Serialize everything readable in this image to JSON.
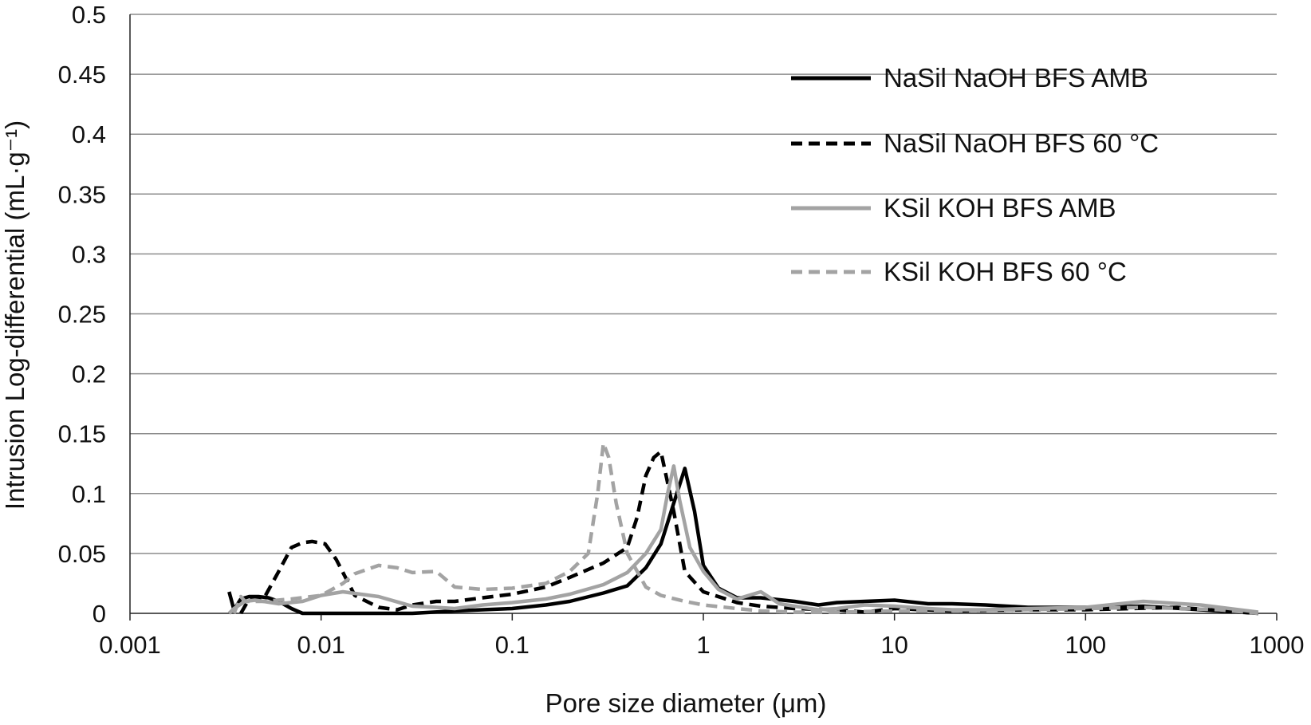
{
  "chart_data": {
    "type": "line",
    "title": "",
    "xlabel": "Pore size diameter (μm)",
    "ylabel": "Intrusion Log-differential (mL·g⁻¹)",
    "xscale": "log",
    "xlim": [
      0.001,
      1000
    ],
    "ylim": [
      0,
      0.5
    ],
    "xticks": [
      0.001,
      0.01,
      0.1,
      1,
      10,
      100,
      1000
    ],
    "xtick_labels": [
      "0.001",
      "0.01",
      "0.1",
      "1",
      "10",
      "100",
      "1000"
    ],
    "yticks": [
      0,
      0.05,
      0.1,
      0.15,
      0.2,
      0.25,
      0.3,
      0.35,
      0.4,
      0.45,
      0.5
    ],
    "ytick_labels": [
      "0",
      "0.05",
      "0.1",
      "0.15",
      "0.2",
      "0.25",
      "0.3",
      "0.35",
      "0.4",
      "0.45",
      "0.5"
    ],
    "grid": "horizontal",
    "legend_position": "top-right",
    "series": [
      {
        "name": "NaSil NaOH BFS AMB",
        "color": "#000000",
        "dash": "solid",
        "x": [
          0.0033,
          0.0035,
          0.0038,
          0.0042,
          0.0047,
          0.0053,
          0.006,
          0.007,
          0.008,
          0.01,
          0.015,
          0.02,
          0.03,
          0.05,
          0.07,
          0.1,
          0.15,
          0.2,
          0.3,
          0.4,
          0.5,
          0.6,
          0.7,
          0.8,
          0.9,
          1.0,
          1.2,
          1.5,
          2,
          3,
          4,
          5,
          7,
          10,
          15,
          20,
          30,
          50,
          100,
          200,
          400,
          800
        ],
        "y": [
          0.018,
          0.003,
          0.012,
          0.014,
          0.014,
          0.013,
          0.01,
          0.004,
          0.0,
          0.0,
          0.0,
          0.0,
          0.0,
          0.002,
          0.003,
          0.004,
          0.007,
          0.01,
          0.017,
          0.023,
          0.038,
          0.058,
          0.092,
          0.121,
          0.085,
          0.04,
          0.021,
          0.013,
          0.013,
          0.01,
          0.007,
          0.009,
          0.01,
          0.011,
          0.008,
          0.008,
          0.007,
          0.005,
          0.005,
          0.006,
          0.003,
          0.0
        ]
      },
      {
        "name": "NaSil NaOH BFS 60 °C",
        "color": "#000000",
        "dash": "dashed",
        "x": [
          0.0038,
          0.0042,
          0.005,
          0.006,
          0.007,
          0.008,
          0.009,
          0.0105,
          0.012,
          0.015,
          0.02,
          0.025,
          0.03,
          0.04,
          0.05,
          0.07,
          0.1,
          0.15,
          0.2,
          0.3,
          0.4,
          0.45,
          0.5,
          0.55,
          0.6,
          0.7,
          0.8,
          1.0,
          1.5,
          2,
          3,
          5,
          7,
          10,
          20,
          50,
          100,
          300,
          800
        ],
        "y": [
          0.0,
          0.012,
          0.012,
          0.035,
          0.055,
          0.059,
          0.06,
          0.058,
          0.045,
          0.015,
          0.005,
          0.003,
          0.007,
          0.01,
          0.01,
          0.013,
          0.016,
          0.022,
          0.03,
          0.042,
          0.055,
          0.08,
          0.115,
          0.13,
          0.135,
          0.085,
          0.035,
          0.018,
          0.009,
          0.006,
          0.004,
          0.003,
          0.001,
          0.004,
          0.002,
          0.003,
          0.003,
          0.005,
          0.0
        ]
      },
      {
        "name": "KSil KOH BFS AMB",
        "color": "#a3a3a3",
        "dash": "solid",
        "x": [
          0.0033,
          0.0035,
          0.004,
          0.0045,
          0.005,
          0.006,
          0.008,
          0.01,
          0.013,
          0.02,
          0.03,
          0.04,
          0.05,
          0.07,
          0.1,
          0.15,
          0.2,
          0.3,
          0.4,
          0.5,
          0.6,
          0.65,
          0.7,
          0.75,
          0.85,
          1.0,
          1.2,
          1.5,
          2.0,
          2.5,
          3,
          4,
          5,
          7,
          10,
          15,
          20,
          30,
          50,
          100,
          200,
          400,
          800
        ],
        "y": [
          0.0,
          0.004,
          0.01,
          0.011,
          0.01,
          0.008,
          0.01,
          0.015,
          0.018,
          0.014,
          0.006,
          0.005,
          0.004,
          0.007,
          0.009,
          0.012,
          0.016,
          0.024,
          0.034,
          0.05,
          0.07,
          0.1,
          0.123,
          0.095,
          0.055,
          0.035,
          0.02,
          0.012,
          0.018,
          0.008,
          0.006,
          0.003,
          0.004,
          0.007,
          0.006,
          0.004,
          0.003,
          0.003,
          0.004,
          0.005,
          0.01,
          0.007,
          0.001
        ]
      },
      {
        "name": "KSil KOH BFS 60 °C",
        "color": "#a3a3a3",
        "dash": "dashed",
        "x": [
          0.0035,
          0.0038,
          0.004,
          0.005,
          0.007,
          0.01,
          0.013,
          0.015,
          0.02,
          0.025,
          0.03,
          0.04,
          0.05,
          0.07,
          0.1,
          0.15,
          0.2,
          0.25,
          0.28,
          0.3,
          0.32,
          0.35,
          0.4,
          0.5,
          0.6,
          0.8,
          1.0,
          1.5,
          2,
          3,
          5,
          10,
          20,
          50,
          100,
          200,
          500,
          800
        ],
        "y": [
          0.0,
          0.014,
          0.01,
          0.01,
          0.012,
          0.015,
          0.025,
          0.033,
          0.04,
          0.038,
          0.034,
          0.035,
          0.022,
          0.02,
          0.021,
          0.025,
          0.035,
          0.05,
          0.1,
          0.142,
          0.13,
          0.092,
          0.05,
          0.022,
          0.015,
          0.01,
          0.007,
          0.004,
          0.002,
          0.001,
          0.001,
          0.002,
          0.002,
          0.003,
          0.004,
          0.005,
          0.003,
          0.0
        ]
      }
    ]
  }
}
